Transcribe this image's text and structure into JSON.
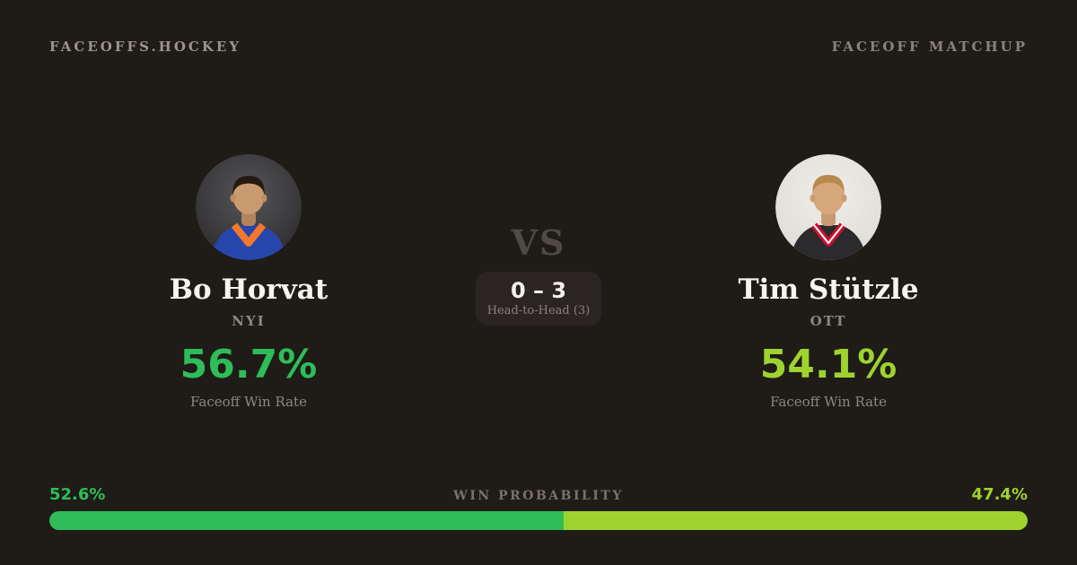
{
  "header": {
    "brand": "FACEOFFS.HOCKEY",
    "page_label": "FACEOFF MATCHUP"
  },
  "matchup": {
    "vs_label": "VS",
    "head_to_head_score": "0 – 3",
    "head_to_head_label": "Head-to-Head (3)"
  },
  "players": {
    "left": {
      "name": "Bo Horvat",
      "team": "NYI",
      "faceoff_win_rate": "56.7%",
      "stat_label": "Faceoff Win Rate",
      "accent_color": "#2ebd59",
      "avatar": "bo-horvat-headshot"
    },
    "right": {
      "name": "Tim Stützle",
      "team": "OTT",
      "faceoff_win_rate": "54.1%",
      "stat_label": "Faceoff Win Rate",
      "accent_color": "#9ed32f",
      "avatar": "tim-stutzle-headshot"
    }
  },
  "win_probability": {
    "label": "WIN PROBABILITY",
    "left": {
      "display": "52.6%",
      "value": 52.6,
      "color": "#2ebd59"
    },
    "right": {
      "display": "47.4%",
      "value": 47.4,
      "color": "#9ed32f"
    }
  },
  "chart_data": {
    "type": "bar",
    "title": "WIN PROBABILITY",
    "categories": [
      "Bo Horvat",
      "Tim Stützle"
    ],
    "values": [
      52.6,
      47.4
    ],
    "unit": "%",
    "colors": [
      "#2ebd59",
      "#9ed32f"
    ],
    "legend_position": "none",
    "orientation": "horizontal-stacked"
  },
  "colors": {
    "background": "#1f1b17",
    "card_box": "#2a2522",
    "text_primary": "#f7f4ef",
    "text_muted": "#8d8780",
    "vs_text": "#4f4a44"
  }
}
